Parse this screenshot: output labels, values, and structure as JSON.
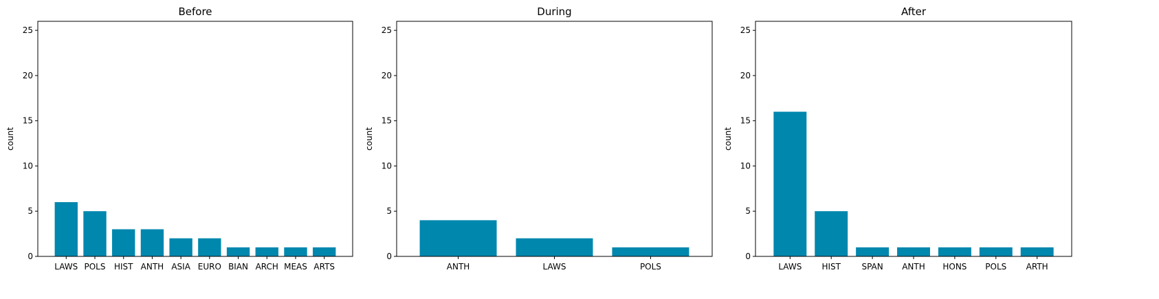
{
  "chart_data": [
    {
      "type": "bar",
      "title": "Before",
      "xlabel": "",
      "ylabel": "count",
      "ylim": [
        0,
        26
      ],
      "yticks": [
        0,
        5,
        10,
        15,
        20,
        25
      ],
      "categories": [
        "LAWS",
        "POLS",
        "HIST",
        "ANTH",
        "ASIA",
        "EURO",
        "BIAN",
        "ARCH",
        "MEAS",
        "ARTS"
      ],
      "values": [
        6,
        5,
        3,
        3,
        2,
        2,
        1,
        1,
        1,
        1
      ],
      "color": "#0087ae",
      "grid": false
    },
    {
      "type": "bar",
      "title": "During",
      "xlabel": "",
      "ylabel": "count",
      "ylim": [
        0,
        26
      ],
      "yticks": [
        0,
        5,
        10,
        15,
        20,
        25
      ],
      "categories": [
        "ANTH",
        "LAWS",
        "POLS"
      ],
      "values": [
        4,
        2,
        1
      ],
      "color": "#0087ae",
      "grid": false
    },
    {
      "type": "bar",
      "title": "After",
      "xlabel": "",
      "ylabel": "count",
      "ylim": [
        0,
        26
      ],
      "yticks": [
        0,
        5,
        10,
        15,
        20,
        25
      ],
      "categories": [
        "LAWS",
        "HIST",
        "SPAN",
        "ANTH",
        "HONS",
        "POLS",
        "ARTH"
      ],
      "values": [
        16,
        5,
        1,
        1,
        1,
        1,
        1
      ],
      "color": "#0087ae",
      "grid": false
    }
  ]
}
